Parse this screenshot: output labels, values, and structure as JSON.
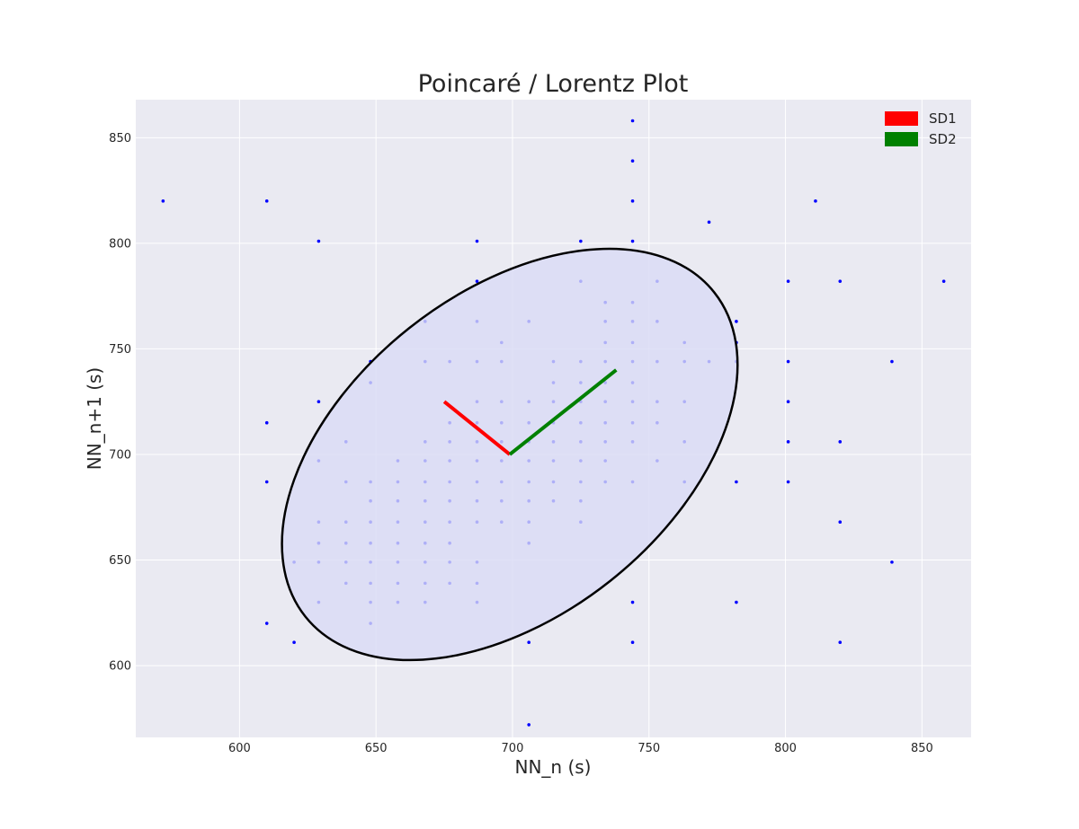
{
  "chart_data": {
    "type": "scatter",
    "title": "Poincaré / Lorentz Plot",
    "xlabel": "NN_n (s)",
    "ylabel": "NN_n+1 (s)",
    "xlim": [
      562,
      868
    ],
    "ylim": [
      566,
      868
    ],
    "xticks": [
      600,
      650,
      700,
      750,
      800,
      850
    ],
    "yticks": [
      600,
      650,
      700,
      750,
      800,
      850
    ],
    "grid": true,
    "background_color": "#eaeaf2",
    "point_color": "#0000ff",
    "legend": {
      "position": "top-right",
      "entries": [
        {
          "label": "SD1",
          "color": "#ff0000"
        },
        {
          "label": "SD2",
          "color": "#008000"
        }
      ]
    },
    "center": [
      699,
      700
    ],
    "sd1_end": [
      675,
      725
    ],
    "sd2_end": [
      738,
      740
    ],
    "ellipse": {
      "color": "#000000",
      "fill": "#d9dbf5"
    },
    "points": [
      [
        572,
        820
      ],
      [
        610,
        820
      ],
      [
        629,
        801
      ],
      [
        687,
        801
      ],
      [
        725,
        801
      ],
      [
        744,
        801
      ],
      [
        744,
        820
      ],
      [
        744,
        839
      ],
      [
        744,
        858
      ],
      [
        772,
        810
      ],
      [
        811,
        820
      ],
      [
        610,
        715
      ],
      [
        610,
        687
      ],
      [
        610,
        620
      ],
      [
        620,
        611
      ],
      [
        620,
        649
      ],
      [
        629,
        725
      ],
      [
        629,
        697
      ],
      [
        629,
        668
      ],
      [
        629,
        658
      ],
      [
        629,
        649
      ],
      [
        629,
        630
      ],
      [
        639,
        706
      ],
      [
        639,
        687
      ],
      [
        639,
        668
      ],
      [
        639,
        658
      ],
      [
        639,
        649
      ],
      [
        639,
        639
      ],
      [
        648,
        744
      ],
      [
        648,
        734
      ],
      [
        648,
        687
      ],
      [
        648,
        678
      ],
      [
        648,
        668
      ],
      [
        648,
        658
      ],
      [
        648,
        649
      ],
      [
        648,
        639
      ],
      [
        648,
        630
      ],
      [
        648,
        620
      ],
      [
        658,
        697
      ],
      [
        658,
        687
      ],
      [
        658,
        678
      ],
      [
        658,
        668
      ],
      [
        658,
        658
      ],
      [
        658,
        649
      ],
      [
        658,
        639
      ],
      [
        658,
        630
      ],
      [
        668,
        763
      ],
      [
        668,
        744
      ],
      [
        668,
        706
      ],
      [
        668,
        697
      ],
      [
        668,
        687
      ],
      [
        668,
        678
      ],
      [
        668,
        668
      ],
      [
        668,
        658
      ],
      [
        668,
        649
      ],
      [
        668,
        639
      ],
      [
        668,
        630
      ],
      [
        677,
        744
      ],
      [
        677,
        715
      ],
      [
        677,
        706
      ],
      [
        677,
        697
      ],
      [
        677,
        687
      ],
      [
        677,
        678
      ],
      [
        677,
        668
      ],
      [
        677,
        658
      ],
      [
        677,
        649
      ],
      [
        677,
        639
      ],
      [
        687,
        782
      ],
      [
        687,
        763
      ],
      [
        687,
        744
      ],
      [
        687,
        725
      ],
      [
        687,
        715
      ],
      [
        687,
        706
      ],
      [
        687,
        697
      ],
      [
        687,
        687
      ],
      [
        687,
        678
      ],
      [
        687,
        668
      ],
      [
        687,
        649
      ],
      [
        687,
        639
      ],
      [
        687,
        630
      ],
      [
        696,
        753
      ],
      [
        696,
        744
      ],
      [
        696,
        725
      ],
      [
        696,
        715
      ],
      [
        696,
        706
      ],
      [
        696,
        697
      ],
      [
        696,
        687
      ],
      [
        696,
        678
      ],
      [
        696,
        668
      ],
      [
        706,
        763
      ],
      [
        706,
        725
      ],
      [
        706,
        715
      ],
      [
        706,
        706
      ],
      [
        706,
        697
      ],
      [
        706,
        687
      ],
      [
        706,
        678
      ],
      [
        706,
        668
      ],
      [
        706,
        658
      ],
      [
        706,
        611
      ],
      [
        706,
        572
      ],
      [
        715,
        744
      ],
      [
        715,
        734
      ],
      [
        715,
        725
      ],
      [
        715,
        715
      ],
      [
        715,
        706
      ],
      [
        715,
        697
      ],
      [
        715,
        687
      ],
      [
        715,
        678
      ],
      [
        725,
        782
      ],
      [
        725,
        744
      ],
      [
        725,
        734
      ],
      [
        725,
        725
      ],
      [
        725,
        715
      ],
      [
        725,
        706
      ],
      [
        725,
        697
      ],
      [
        725,
        687
      ],
      [
        725,
        678
      ],
      [
        725,
        668
      ],
      [
        734,
        772
      ],
      [
        734,
        763
      ],
      [
        734,
        753
      ],
      [
        734,
        744
      ],
      [
        734,
        734
      ],
      [
        734,
        725
      ],
      [
        734,
        715
      ],
      [
        734,
        706
      ],
      [
        734,
        697
      ],
      [
        734,
        687
      ],
      [
        744,
        772
      ],
      [
        744,
        763
      ],
      [
        744,
        753
      ],
      [
        744,
        744
      ],
      [
        744,
        734
      ],
      [
        744,
        725
      ],
      [
        744,
        715
      ],
      [
        744,
        706
      ],
      [
        744,
        687
      ],
      [
        744,
        630
      ],
      [
        744,
        611
      ],
      [
        753,
        782
      ],
      [
        753,
        763
      ],
      [
        753,
        744
      ],
      [
        753,
        725
      ],
      [
        753,
        715
      ],
      [
        753,
        697
      ],
      [
        763,
        753
      ],
      [
        763,
        744
      ],
      [
        763,
        725
      ],
      [
        763,
        706
      ],
      [
        763,
        687
      ],
      [
        772,
        744
      ],
      [
        782,
        763
      ],
      [
        782,
        753
      ],
      [
        782,
        744
      ],
      [
        782,
        687
      ],
      [
        782,
        630
      ],
      [
        801,
        782
      ],
      [
        801,
        744
      ],
      [
        801,
        725
      ],
      [
        801,
        706
      ],
      [
        801,
        687
      ],
      [
        820,
        782
      ],
      [
        820,
        706
      ],
      [
        820,
        668
      ],
      [
        820,
        611
      ],
      [
        839,
        744
      ],
      [
        839,
        649
      ],
      [
        858,
        782
      ]
    ]
  }
}
